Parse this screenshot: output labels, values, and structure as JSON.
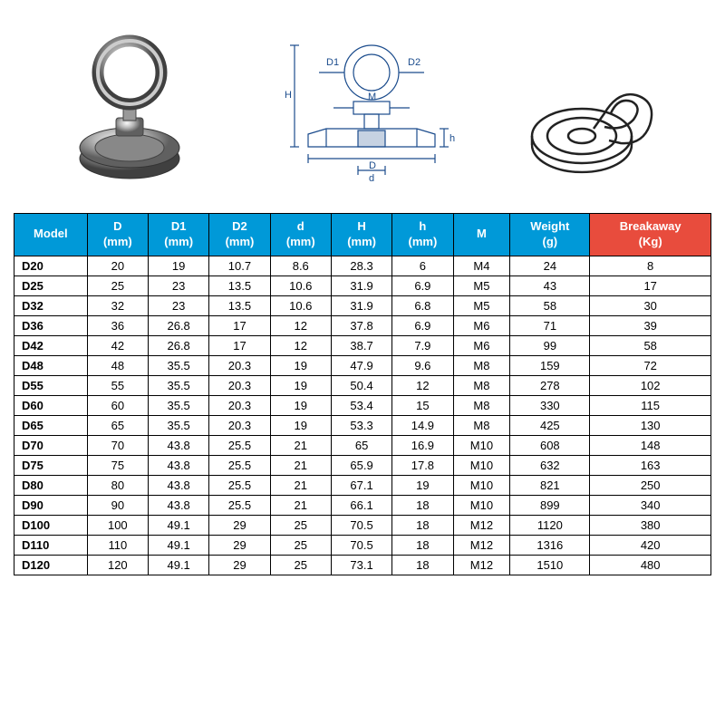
{
  "header": {
    "blue_bg": "#0099d8",
    "red_bg": "#e84c3d",
    "text_color": "#ffffff"
  },
  "diagram": {
    "labels": {
      "D": "D",
      "D1": "D1",
      "D2": "D2",
      "M": "M",
      "H": "H",
      "h": "h",
      "d": "d"
    }
  },
  "table": {
    "columns": [
      {
        "label": "Model",
        "sub": "",
        "color": "blue"
      },
      {
        "label": "D",
        "sub": "(mm)",
        "color": "blue"
      },
      {
        "label": "D1",
        "sub": "(mm)",
        "color": "blue"
      },
      {
        "label": "D2",
        "sub": "(mm)",
        "color": "blue"
      },
      {
        "label": "d",
        "sub": "(mm)",
        "color": "blue"
      },
      {
        "label": "H",
        "sub": "(mm)",
        "color": "blue"
      },
      {
        "label": "h",
        "sub": "(mm)",
        "color": "blue"
      },
      {
        "label": "M",
        "sub": "",
        "color": "blue"
      },
      {
        "label": "Weight",
        "sub": "(g)",
        "color": "blue"
      },
      {
        "label": "Breakaway",
        "sub": "(Kg)",
        "color": "red"
      }
    ],
    "rows": [
      [
        "D20",
        "20",
        "19",
        "10.7",
        "8.6",
        "28.3",
        "6",
        "M4",
        "24",
        "8"
      ],
      [
        "D25",
        "25",
        "23",
        "13.5",
        "10.6",
        "31.9",
        "6.9",
        "M5",
        "43",
        "17"
      ],
      [
        "D32",
        "32",
        "23",
        "13.5",
        "10.6",
        "31.9",
        "6.8",
        "M5",
        "58",
        "30"
      ],
      [
        "D36",
        "36",
        "26.8",
        "17",
        "12",
        "37.8",
        "6.9",
        "M6",
        "71",
        "39"
      ],
      [
        "D42",
        "42",
        "26.8",
        "17",
        "12",
        "38.7",
        "7.9",
        "M6",
        "99",
        "58"
      ],
      [
        "D48",
        "48",
        "35.5",
        "20.3",
        "19",
        "47.9",
        "9.6",
        "M8",
        "159",
        "72"
      ],
      [
        "D55",
        "55",
        "35.5",
        "20.3",
        "19",
        "50.4",
        "12",
        "M8",
        "278",
        "102"
      ],
      [
        "D60",
        "60",
        "35.5",
        "20.3",
        "19",
        "53.4",
        "15",
        "M8",
        "330",
        "115"
      ],
      [
        "D65",
        "65",
        "35.5",
        "20.3",
        "19",
        "53.3",
        "14.9",
        "M8",
        "425",
        "130"
      ],
      [
        "D70",
        "70",
        "43.8",
        "25.5",
        "21",
        "65",
        "16.9",
        "M10",
        "608",
        "148"
      ],
      [
        "D75",
        "75",
        "43.8",
        "25.5",
        "21",
        "65.9",
        "17.8",
        "M10",
        "632",
        "163"
      ],
      [
        "D80",
        "80",
        "43.8",
        "25.5",
        "21",
        "67.1",
        "19",
        "M10",
        "821",
        "250"
      ],
      [
        "D90",
        "90",
        "43.8",
        "25.5",
        "21",
        "66.1",
        "18",
        "M10",
        "899",
        "340"
      ],
      [
        "D100",
        "100",
        "49.1",
        "29",
        "25",
        "70.5",
        "18",
        "M12",
        "1120",
        "380"
      ],
      [
        "D110",
        "110",
        "49.1",
        "29",
        "25",
        "70.5",
        "18",
        "M12",
        "1316",
        "420"
      ],
      [
        "D120",
        "120",
        "49.1",
        "29",
        "25",
        "73.1",
        "18",
        "M12",
        "1510",
        "480"
      ]
    ]
  }
}
